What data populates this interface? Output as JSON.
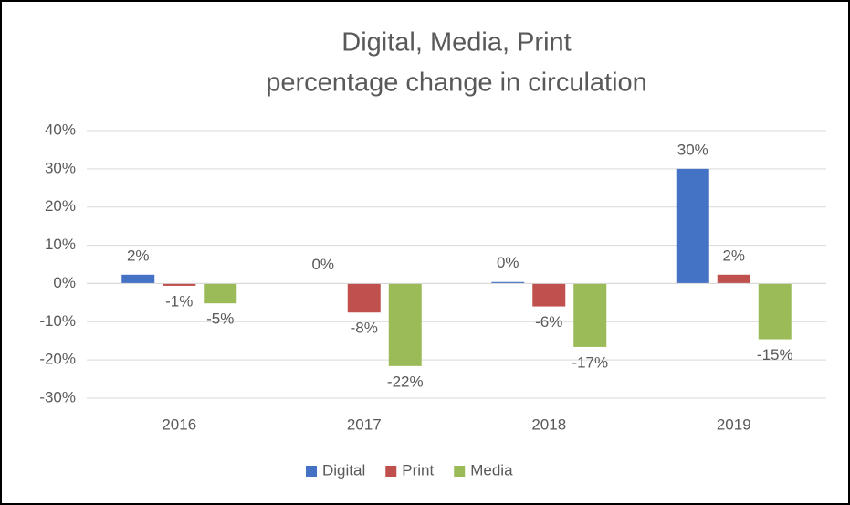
{
  "chart_data": {
    "type": "bar",
    "title": [
      "Digital, Media, Print",
      "percentage change in circulation"
    ],
    "categories": [
      "2016",
      "2017",
      "2018",
      "2019"
    ],
    "series": [
      {
        "name": "Digital",
        "color": "#4472c4",
        "values": [
          2.3,
          0,
          0.4,
          30
        ],
        "value_labels": [
          "2%",
          "0%",
          "0%",
          "30%"
        ]
      },
      {
        "name": "Print",
        "color": "#c0504d",
        "values": [
          -0.6,
          -7.6,
          -6,
          2.3
        ],
        "value_labels": [
          "-1%",
          "-8%",
          "-6%",
          "2%"
        ]
      },
      {
        "name": "Media",
        "color": "#9bbb59",
        "values": [
          -5.2,
          -21.6,
          -16.6,
          -14.6
        ],
        "value_labels": [
          "-5%",
          "-22%",
          "-17%",
          "-15%"
        ]
      }
    ],
    "ylim": [
      -30,
      40
    ],
    "yticks": [
      {
        "value": -30,
        "label": "-30%"
      },
      {
        "value": -20,
        "label": "-20%"
      },
      {
        "value": -10,
        "label": "-10%"
      },
      {
        "value": 0,
        "label": "0%"
      },
      {
        "value": 10,
        "label": "10%"
      },
      {
        "value": 20,
        "label": "20%"
      },
      {
        "value": 30,
        "label": "30%"
      },
      {
        "value": 40,
        "label": "40%"
      }
    ],
    "grid": true,
    "legend": "bottom"
  }
}
